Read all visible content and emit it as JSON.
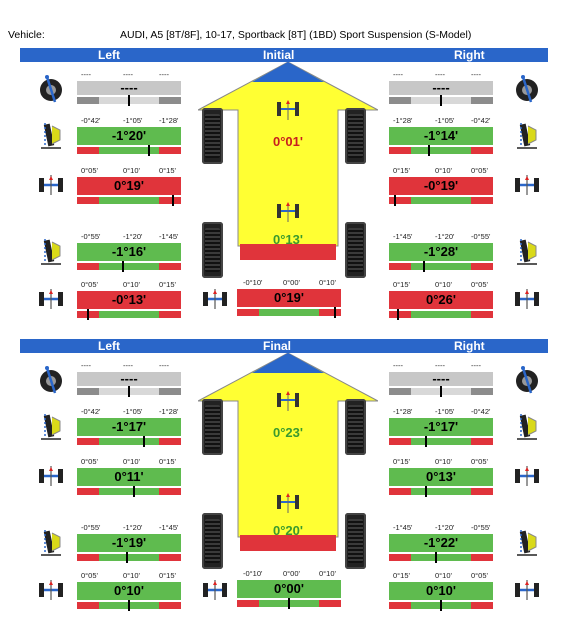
{
  "header": {
    "label": "Vehicle:",
    "vehicle": "AUDI, A5 [8T/8F], 10-17, Sportback [8T] (1BD) Sport Suspension (S-Model)"
  },
  "colors": {
    "band": "#2a66c9",
    "green": "#5fbb4f",
    "red": "#e0343b",
    "gray": "#c7c7c7",
    "arrow": "#ffff33",
    "arrow_tip": "#2a66c9"
  },
  "sections": [
    {
      "title_left": "Left",
      "title_center": "Initial",
      "title_right": "Right",
      "rows": [
        {
          "name": "caster",
          "left": {
            "ticks": [
              "----",
              "----",
              "----"
            ],
            "value": "----",
            "status": "gray",
            "marker": 0.5
          },
          "right": {
            "ticks": [
              "----",
              "----",
              "----"
            ],
            "value": "----",
            "status": "gray",
            "marker": 0.5
          }
        },
        {
          "name": "front-camber",
          "left": {
            "ticks": [
              "-0°42'",
              "-1°05'",
              "-1°28'"
            ],
            "value": "-1°20'",
            "status": "green",
            "marker": 0.7
          },
          "right": {
            "ticks": [
              "-1°28'",
              "-1°05'",
              "-0°42'"
            ],
            "value": "-1°14'",
            "status": "green",
            "marker": 0.38
          }
        },
        {
          "name": "front-toe",
          "left": {
            "ticks": [
              "0°05'",
              "0°10'",
              "0°15'"
            ],
            "value": "0°19'",
            "status": "red",
            "marker": 0.93
          },
          "right": {
            "ticks": [
              "0°15'",
              "0°10'",
              "0°05'"
            ],
            "value": "-0°19'",
            "status": "red",
            "marker": 0.05
          }
        },
        {
          "name": "rear-camber",
          "left": {
            "ticks": [
              "-0°55'",
              "-1°20'",
              "-1°45'"
            ],
            "value": "-1°16'",
            "status": "green",
            "marker": 0.44
          },
          "right": {
            "ticks": [
              "-1°45'",
              "-1°20'",
              "-0°55'"
            ],
            "value": "-1°28'",
            "status": "green",
            "marker": 0.33
          }
        },
        {
          "name": "rear-toe",
          "left": {
            "ticks": [
              "0°05'",
              "0°10'",
              "0°15'"
            ],
            "value": "-0°13'",
            "status": "red",
            "marker": 0.1
          },
          "right": {
            "ticks": [
              "0°15'",
              "0°10'",
              "0°05'"
            ],
            "value": "0°26'",
            "status": "red",
            "marker": 0.08
          }
        }
      ],
      "center": {
        "front_total_toe": "0°01'",
        "front_status": "red",
        "rear_total_toe": "0°13'",
        "rear_status": "green",
        "thrust_ticks": [
          "-0°10'",
          "0°00'",
          "0°10'"
        ],
        "thrust_value": "0°19'",
        "thrust_status": "red",
        "thrust_marker": 0.95
      }
    },
    {
      "title_left": "Left",
      "title_center": "Final",
      "title_right": "Right",
      "rows": [
        {
          "name": "caster",
          "left": {
            "ticks": [
              "----",
              "----",
              "----"
            ],
            "value": "----",
            "status": "gray",
            "marker": 0.5
          },
          "right": {
            "ticks": [
              "----",
              "----",
              "----"
            ],
            "value": "----",
            "status": "gray",
            "marker": 0.5
          }
        },
        {
          "name": "front-camber",
          "left": {
            "ticks": [
              "-0°42'",
              "-1°05'",
              "-1°28'"
            ],
            "value": "-1°17'",
            "status": "green",
            "marker": 0.65
          },
          "right": {
            "ticks": [
              "-1°28'",
              "-1°05'",
              "-0°42'"
            ],
            "value": "-1°17'",
            "status": "green",
            "marker": 0.35
          }
        },
        {
          "name": "front-toe",
          "left": {
            "ticks": [
              "0°05'",
              "0°10'",
              "0°15'"
            ],
            "value": "0°11'",
            "status": "green",
            "marker": 0.55
          },
          "right": {
            "ticks": [
              "0°15'",
              "0°10'",
              "0°05'"
            ],
            "value": "0°13'",
            "status": "green",
            "marker": 0.35
          }
        },
        {
          "name": "rear-camber",
          "left": {
            "ticks": [
              "-0°55'",
              "-1°20'",
              "-1°45'"
            ],
            "value": "-1°19'",
            "status": "green",
            "marker": 0.48
          },
          "right": {
            "ticks": [
              "-1°45'",
              "-1°20'",
              "-0°55'"
            ],
            "value": "-1°22'",
            "status": "green",
            "marker": 0.45
          }
        },
        {
          "name": "rear-toe",
          "left": {
            "ticks": [
              "0°05'",
              "0°10'",
              "0°15'"
            ],
            "value": "0°10'",
            "status": "green",
            "marker": 0.5
          },
          "right": {
            "ticks": [
              "0°15'",
              "0°10'",
              "0°05'"
            ],
            "value": "0°10'",
            "status": "green",
            "marker": 0.5
          }
        }
      ],
      "center": {
        "front_total_toe": "0°23'",
        "front_status": "green",
        "rear_total_toe": "0°20'",
        "rear_status": "green",
        "thrust_ticks": [
          "-0°10'",
          "0°00'",
          "0°10'"
        ],
        "thrust_value": "0°00'",
        "thrust_status": "green",
        "thrust_marker": 0.5
      }
    }
  ]
}
